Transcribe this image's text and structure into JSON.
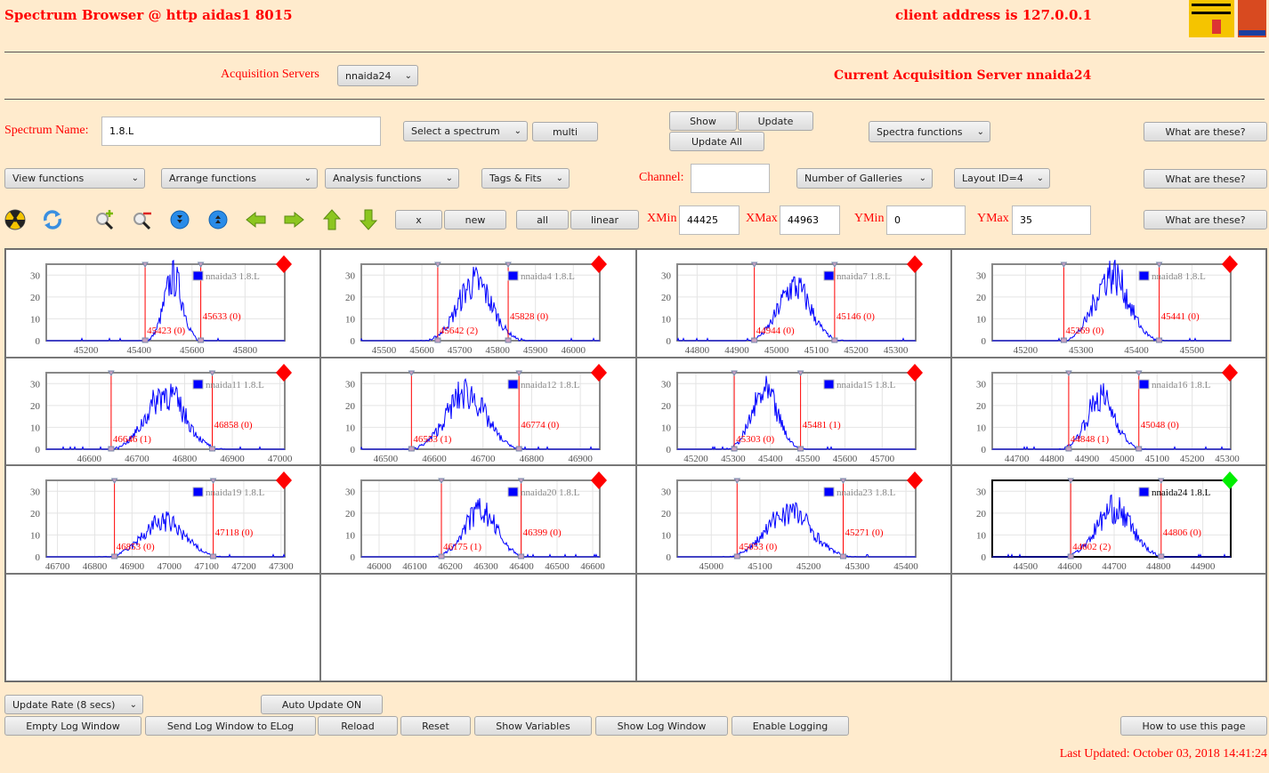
{
  "header": {
    "title": "Spectrum Browser @ http aidas1 8015",
    "client": "client address is 127.0.0.1",
    "logo_midas": "Midas",
    "logo_tcl": "TCL POWERED"
  },
  "acq": {
    "label": "Acquisition Servers",
    "value": "nnaida24",
    "current": "Current Acquisition Server nnaida24"
  },
  "row1": {
    "spectrum_label": "Spectrum Name:",
    "spectrum_value": "1.8.L",
    "select": "Select a spectrum",
    "multi": "multi",
    "show": "Show",
    "update": "Update",
    "update_all": "Update All",
    "spectra_functions": "Spectra functions",
    "help": "What are these?"
  },
  "row2": {
    "view": "View functions",
    "arrange": "Arrange functions",
    "analysis": "Analysis functions",
    "tags": "Tags & Fits",
    "channel_label": "Channel:",
    "channel_value": "",
    "galleries": "Number of Galleries",
    "layout": "Layout ID=4",
    "help": "What are these?"
  },
  "row3": {
    "icons": [
      "radiation-icon",
      "refresh-icon",
      "zoom-in-icon",
      "zoom-out-icon",
      "expand-vertical-icon",
      "collapse-vertical-icon",
      "arrow-left-icon",
      "arrow-right-icon",
      "arrow-up-icon",
      "arrow-down-icon"
    ],
    "x": "x",
    "new": "new",
    "all": "all",
    "linear": "linear",
    "xmin_label": "XMin",
    "xmin": "44425",
    "xmax_label": "XMax",
    "xmax": "44963",
    "ymin_label": "YMin",
    "ymin": "0",
    "ymax_label": "YMax",
    "ymax": "35",
    "help": "What are these?"
  },
  "bottom": {
    "rate": "Update Rate (8 secs)",
    "auto": "Auto Update ON",
    "empty": "Empty Log Window",
    "send": "Send Log Window to ELog",
    "reload": "Reload",
    "reset": "Reset",
    "vars": "Show Variables",
    "showlog": "Show Log Window",
    "enable": "Enable Logging",
    "howto": "How to use this page",
    "updated": "Last Updated: October 03, 2018 14:41:24"
  },
  "colors": {
    "accent": "#ff0000",
    "series": "#0000ff",
    "active": "#00ee00"
  },
  "chart_data": [
    {
      "type": "line",
      "legend": "nnaida3 1.8.L",
      "xlim": [
        45050,
        45950
      ],
      "ylim": [
        0,
        35
      ],
      "xticks": [
        45200,
        45400,
        45600,
        45800
      ],
      "yticks": [
        0,
        10,
        20,
        30
      ],
      "markers": [
        {
          "x": 45423,
          "label": "45423 (0)"
        },
        {
          "x": 45633,
          "label": "45633 (0)"
        }
      ],
      "peak": {
        "center": 45530,
        "sigma": 35,
        "height": 30
      },
      "selected": false
    },
    {
      "type": "line",
      "legend": "nnaida4 1.8.L",
      "xlim": [
        45440,
        46070
      ],
      "ylim": [
        0,
        35
      ],
      "xticks": [
        45500,
        45600,
        45700,
        45800,
        45900,
        46000
      ],
      "yticks": [
        0,
        10,
        20,
        30
      ],
      "markers": [
        {
          "x": 45642,
          "label": "45642 (2)"
        },
        {
          "x": 45828,
          "label": "45828 (0)"
        }
      ],
      "peak": {
        "center": 45740,
        "sigma": 45,
        "height": 28
      },
      "selected": false
    },
    {
      "type": "line",
      "legend": "nnaida7 1.8.L",
      "xlim": [
        44750,
        45350
      ],
      "ylim": [
        0,
        35
      ],
      "xticks": [
        44800,
        44900,
        45000,
        45100,
        45200,
        45300
      ],
      "yticks": [
        0,
        10,
        20,
        30
      ],
      "markers": [
        {
          "x": 44944,
          "label": "44944 (0)"
        },
        {
          "x": 45146,
          "label": "45146 (0)"
        }
      ],
      "peak": {
        "center": 45045,
        "sigma": 40,
        "height": 26
      },
      "selected": false
    },
    {
      "type": "line",
      "legend": "nnaida8 1.8.L",
      "xlim": [
        45140,
        45570
      ],
      "ylim": [
        0,
        35
      ],
      "xticks": [
        45200,
        45300,
        45400,
        45500
      ],
      "yticks": [
        0,
        10,
        20,
        30
      ],
      "markers": [
        {
          "x": 45269,
          "label": "45269 (0)"
        },
        {
          "x": 45441,
          "label": "45441 (0)"
        }
      ],
      "peak": {
        "center": 45355,
        "sigma": 30,
        "height": 32
      },
      "selected": false
    },
    {
      "type": "line",
      "legend": "nnaida11 1.8.L",
      "xlim": [
        46510,
        47010
      ],
      "ylim": [
        0,
        35
      ],
      "xticks": [
        46600,
        46700,
        46800,
        46900,
        47000
      ],
      "yticks": [
        0,
        10,
        20,
        30
      ],
      "markers": [
        {
          "x": 46646,
          "label": "46646 (1)"
        },
        {
          "x": 46858,
          "label": "46858 (0)"
        }
      ],
      "peak": {
        "center": 46760,
        "sigma": 40,
        "height": 27
      },
      "selected": false
    },
    {
      "type": "line",
      "legend": "nnaida12 1.8.L",
      "xlim": [
        46450,
        46940
      ],
      "ylim": [
        0,
        35
      ],
      "xticks": [
        46500,
        46600,
        46700,
        46800,
        46900
      ],
      "yticks": [
        0,
        10,
        20,
        30
      ],
      "markers": [
        {
          "x": 46553,
          "label": "46553 (1)"
        },
        {
          "x": 46774,
          "label": "46774 (0)"
        }
      ],
      "peak": {
        "center": 46665,
        "sigma": 40,
        "height": 27
      },
      "selected": false
    },
    {
      "type": "line",
      "legend": "nnaida15 1.8.L",
      "xlim": [
        45150,
        45790
      ],
      "ylim": [
        0,
        35
      ],
      "xticks": [
        45200,
        45300,
        45400,
        45500,
        45600,
        45700
      ],
      "yticks": [
        0,
        10,
        20,
        30
      ],
      "markers": [
        {
          "x": 45303,
          "label": "45303 (0)"
        },
        {
          "x": 45481,
          "label": "45481 (1)"
        }
      ],
      "peak": {
        "center": 45385,
        "sigma": 35,
        "height": 27
      },
      "selected": false
    },
    {
      "type": "line",
      "legend": "nnaida16 1.8.L",
      "xlim": [
        44630,
        45310
      ],
      "ylim": [
        0,
        35
      ],
      "xticks": [
        44700,
        44800,
        44900,
        45000,
        45100,
        45200,
        45300
      ],
      "yticks": [
        0,
        10,
        20,
        30
      ],
      "markers": [
        {
          "x": 44848,
          "label": "44848 (1)"
        },
        {
          "x": 45048,
          "label": "45048 (0)"
        }
      ],
      "peak": {
        "center": 44940,
        "sigma": 40,
        "height": 25
      },
      "selected": false
    },
    {
      "type": "line",
      "legend": "nnaida19 1.8.L",
      "xlim": [
        46670,
        47310
      ],
      "ylim": [
        0,
        35
      ],
      "xticks": [
        46700,
        46800,
        46900,
        47000,
        47100,
        47200,
        47300
      ],
      "yticks": [
        0,
        10,
        20,
        30
      ],
      "markers": [
        {
          "x": 46853,
          "label": "46853 (0)"
        },
        {
          "x": 47118,
          "label": "47118 (0)"
        }
      ],
      "peak": {
        "center": 46985,
        "sigma": 55,
        "height": 17
      },
      "selected": false
    },
    {
      "type": "line",
      "legend": "nnaida20 1.8.L",
      "xlim": [
        45950,
        46620
      ],
      "ylim": [
        0,
        35
      ],
      "xticks": [
        46000,
        46100,
        46200,
        46300,
        46400,
        46500,
        46600
      ],
      "yticks": [
        0,
        10,
        20,
        30
      ],
      "markers": [
        {
          "x": 46175,
          "label": "46175 (1)"
        },
        {
          "x": 46399,
          "label": "46399 (0)"
        }
      ],
      "peak": {
        "center": 46285,
        "sigma": 45,
        "height": 22
      },
      "selected": false
    },
    {
      "type": "line",
      "legend": "nnaida23 1.8.L",
      "xlim": [
        44930,
        45420
      ],
      "ylim": [
        0,
        35
      ],
      "xticks": [
        45000,
        45100,
        45200,
        45300,
        45400
      ],
      "yticks": [
        0,
        10,
        20,
        30
      ],
      "markers": [
        {
          "x": 45053,
          "label": "45053 (0)"
        },
        {
          "x": 45271,
          "label": "45271 (0)"
        }
      ],
      "peak": {
        "center": 45160,
        "sigma": 45,
        "height": 22
      },
      "selected": false
    },
    {
      "type": "line",
      "legend": "nnaida24 1.8.L",
      "xlim": [
        44425,
        44963
      ],
      "ylim": [
        0,
        35
      ],
      "xticks": [
        44500,
        44600,
        44700,
        44800,
        44900
      ],
      "yticks": [
        0,
        10,
        20,
        30
      ],
      "markers": [
        {
          "x": 44602,
          "label": "44602 (2)"
        },
        {
          "x": 44806,
          "label": "44806 (0)"
        }
      ],
      "peak": {
        "center": 44700,
        "sigma": 40,
        "height": 23
      },
      "selected": true
    }
  ]
}
